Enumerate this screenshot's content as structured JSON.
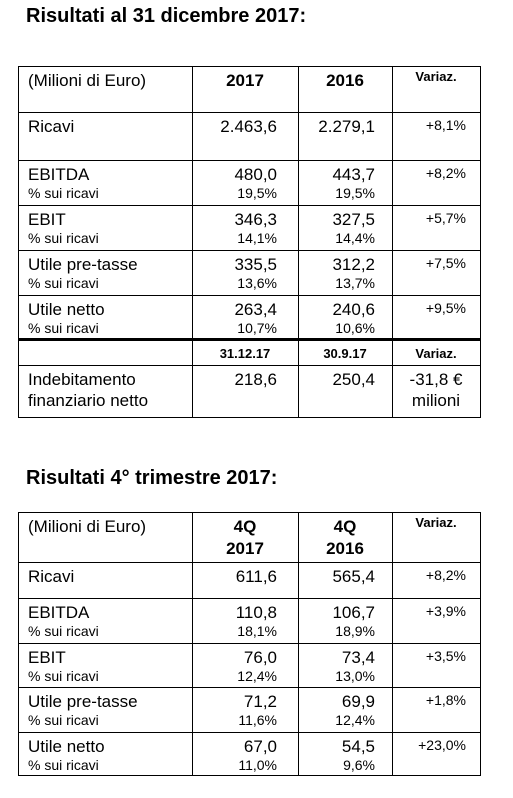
{
  "sections": [
    {
      "title": "Risultati al 31 dicembre 2017:",
      "header": [
        [
          "(Milioni di Euro)"
        ],
        [
          "2017"
        ],
        [
          "2016"
        ],
        [
          "Variaz."
        ]
      ],
      "rows": [
        {
          "main": [
            "Ricavi",
            "2.463,6",
            "2.279,1",
            "+8,1%"
          ]
        },
        {
          "main": [
            "EBITDA",
            "480,0",
            "443,7",
            "+8,2%"
          ],
          "sub": [
            "% sui ricavi",
            "19,5%",
            "19,5%"
          ]
        },
        {
          "main": [
            "EBIT",
            "346,3",
            "327,5",
            "+5,7%"
          ],
          "sub": [
            "% sui ricavi",
            "14,1%",
            "14,4%"
          ]
        },
        {
          "main": [
            "Utile pre-tasse",
            "335,5",
            "312,2",
            "+7,5%"
          ],
          "sub": [
            "% sui ricavi",
            "13,6%",
            "13,7%"
          ]
        },
        {
          "main": [
            "Utile netto",
            "263,4",
            "240,6",
            "+9,5%"
          ],
          "sub": [
            "% sui ricavi",
            "10,7%",
            "10,6%"
          ]
        }
      ],
      "subheader": [
        "31.12.17",
        "30.9.17",
        "Variaz."
      ],
      "debt": {
        "label": [
          "Indebitamento",
          "finanziario netto"
        ],
        "values": [
          "218,6",
          "250,4"
        ],
        "change": [
          "-31,8 €",
          "milioni"
        ]
      }
    },
    {
      "title": "Risultati 4° trimestre 2017:",
      "header": [
        [
          "(Milioni di Euro)"
        ],
        [
          "4Q",
          "2017"
        ],
        [
          "4Q",
          "2016"
        ],
        [
          "Variaz."
        ]
      ],
      "rows": [
        {
          "main": [
            "Ricavi",
            "611,6",
            "565,4",
            "+8,2%"
          ]
        },
        {
          "main": [
            "EBITDA",
            "110,8",
            "106,7",
            "+3,9%"
          ],
          "sub": [
            "% sui ricavi",
            "18,1%",
            "18,9%"
          ]
        },
        {
          "main": [
            "EBIT",
            "76,0",
            "73,4",
            "+3,5%"
          ],
          "sub": [
            "% sui ricavi",
            "12,4%",
            "13,0%"
          ]
        },
        {
          "main": [
            "Utile pre-tasse",
            "71,2",
            "69,9",
            "+1,8%"
          ],
          "sub": [
            "% sui ricavi",
            "11,6%",
            "12,4%"
          ]
        },
        {
          "main": [
            "Utile netto",
            "67,0",
            "54,5",
            "+23,0%"
          ],
          "sub": [
            "% sui ricavi",
            "11,0%",
            "9,6%"
          ]
        }
      ]
    }
  ]
}
